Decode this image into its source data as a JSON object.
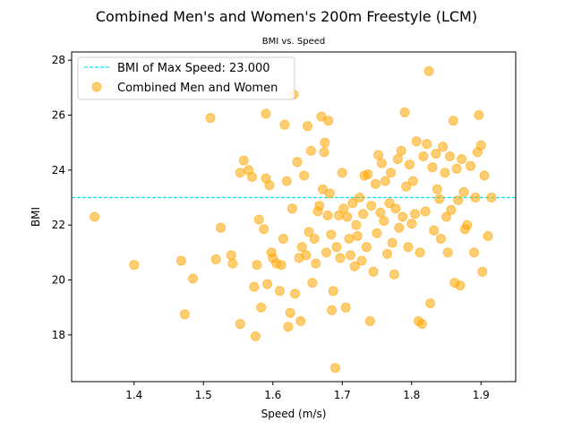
{
  "chart_data": {
    "type": "scatter",
    "title": "Combined Men's and Women's 200m Freestyle (LCM)",
    "subtitle": "BMI vs. Speed",
    "xlabel": "Speed (m/s)",
    "ylabel": "BMI",
    "xlim": [
      1.31,
      1.95
    ],
    "ylim": [
      16.3,
      28.3
    ],
    "xticks": [
      "1.4",
      "1.5",
      "1.6",
      "1.7",
      "1.8",
      "1.9"
    ],
    "yticks": [
      "18",
      "20",
      "22",
      "24",
      "26",
      "28"
    ],
    "grid": false,
    "legend_position": "upper-left",
    "reference_line": {
      "label": "BMI of Max Speed: 23.000",
      "y": 23.0,
      "color": "#00e5ee",
      "style": "dashed"
    },
    "series": [
      {
        "name": "Combined Men and Women",
        "color": "#ffa500",
        "points": [
          [
            1.343,
            22.3
          ],
          [
            1.4,
            20.55
          ],
          [
            1.468,
            20.7
          ],
          [
            1.473,
            18.75
          ],
          [
            1.485,
            20.05
          ],
          [
            1.51,
            25.9
          ],
          [
            1.518,
            20.75
          ],
          [
            1.525,
            21.9
          ],
          [
            1.54,
            20.9
          ],
          [
            1.542,
            20.6
          ],
          [
            1.553,
            18.4
          ],
          [
            1.553,
            23.9
          ],
          [
            1.558,
            24.35
          ],
          [
            1.565,
            24.0
          ],
          [
            1.57,
            23.75
          ],
          [
            1.573,
            19.75
          ],
          [
            1.575,
            17.95
          ],
          [
            1.577,
            20.55
          ],
          [
            1.58,
            22.2
          ],
          [
            1.583,
            19.0
          ],
          [
            1.587,
            21.85
          ],
          [
            1.59,
            26.05
          ],
          [
            1.59,
            23.7
          ],
          [
            1.592,
            19.85
          ],
          [
            1.595,
            23.45
          ],
          [
            1.598,
            21.0
          ],
          [
            1.6,
            20.8
          ],
          [
            1.605,
            20.6
          ],
          [
            1.61,
            19.6
          ],
          [
            1.612,
            20.55
          ],
          [
            1.615,
            21.5
          ],
          [
            1.617,
            25.65
          ],
          [
            1.62,
            23.6
          ],
          [
            1.622,
            18.3
          ],
          [
            1.625,
            18.8
          ],
          [
            1.628,
            22.6
          ],
          [
            1.63,
            26.75
          ],
          [
            1.632,
            19.5
          ],
          [
            1.635,
            24.3
          ],
          [
            1.638,
            20.8
          ],
          [
            1.64,
            18.5
          ],
          [
            1.642,
            21.2
          ],
          [
            1.645,
            23.8
          ],
          [
            1.648,
            20.9
          ],
          [
            1.65,
            25.6
          ],
          [
            1.652,
            21.75
          ],
          [
            1.655,
            24.7
          ],
          [
            1.657,
            19.9
          ],
          [
            1.66,
            21.5
          ],
          [
            1.662,
            20.6
          ],
          [
            1.665,
            22.5
          ],
          [
            1.667,
            22.7
          ],
          [
            1.67,
            25.95
          ],
          [
            1.672,
            23.3
          ],
          [
            1.674,
            24.65
          ],
          [
            1.675,
            25.0
          ],
          [
            1.677,
            21.0
          ],
          [
            1.679,
            22.35
          ],
          [
            1.68,
            25.8
          ],
          [
            1.682,
            23.15
          ],
          [
            1.684,
            21.65
          ],
          [
            1.685,
            18.9
          ],
          [
            1.687,
            19.6
          ],
          [
            1.69,
            16.8
          ],
          [
            1.692,
            21.2
          ],
          [
            1.695,
            22.35
          ],
          [
            1.697,
            20.8
          ],
          [
            1.7,
            23.9
          ],
          [
            1.702,
            22.6
          ],
          [
            1.705,
            19.0
          ],
          [
            1.707,
            22.3
          ],
          [
            1.71,
            21.5
          ],
          [
            1.712,
            20.9
          ],
          [
            1.715,
            22.8
          ],
          [
            1.718,
            20.5
          ],
          [
            1.72,
            22.0
          ],
          [
            1.722,
            21.6
          ],
          [
            1.725,
            23.0
          ],
          [
            1.728,
            20.7
          ],
          [
            1.73,
            22.4
          ],
          [
            1.732,
            23.8
          ],
          [
            1.735,
            21.2
          ],
          [
            1.737,
            23.85
          ],
          [
            1.74,
            18.5
          ],
          [
            1.742,
            22.7
          ],
          [
            1.745,
            20.3
          ],
          [
            1.748,
            23.5
          ],
          [
            1.75,
            21.7
          ],
          [
            1.752,
            24.55
          ],
          [
            1.755,
            22.45
          ],
          [
            1.757,
            24.25
          ],
          [
            1.76,
            22.15
          ],
          [
            1.762,
            23.6
          ],
          [
            1.765,
            20.95
          ],
          [
            1.768,
            22.8
          ],
          [
            1.77,
            23.9
          ],
          [
            1.772,
            21.35
          ],
          [
            1.775,
            20.2
          ],
          [
            1.777,
            22.6
          ],
          [
            1.78,
            24.4
          ],
          [
            1.782,
            21.9
          ],
          [
            1.785,
            24.7
          ],
          [
            1.787,
            22.3
          ],
          [
            1.79,
            26.1
          ],
          [
            1.792,
            23.4
          ],
          [
            1.795,
            21.2
          ],
          [
            1.797,
            24.2
          ],
          [
            1.8,
            22.05
          ],
          [
            1.802,
            23.6
          ],
          [
            1.805,
            22.4
          ],
          [
            1.807,
            25.05
          ],
          [
            1.81,
            18.5
          ],
          [
            1.812,
            21.0
          ],
          [
            1.815,
            18.4
          ],
          [
            1.817,
            24.5
          ],
          [
            1.82,
            22.5
          ],
          [
            1.822,
            24.95
          ],
          [
            1.825,
            27.6
          ],
          [
            1.827,
            19.15
          ],
          [
            1.83,
            24.1
          ],
          [
            1.832,
            21.8
          ],
          [
            1.835,
            24.6
          ],
          [
            1.837,
            23.3
          ],
          [
            1.84,
            22.95
          ],
          [
            1.842,
            21.5
          ],
          [
            1.845,
            24.85
          ],
          [
            1.848,
            23.9
          ],
          [
            1.85,
            22.3
          ],
          [
            1.852,
            21.0
          ],
          [
            1.855,
            24.5
          ],
          [
            1.857,
            22.55
          ],
          [
            1.86,
            25.8
          ],
          [
            1.862,
            19.9
          ],
          [
            1.865,
            24.05
          ],
          [
            1.867,
            22.9
          ],
          [
            1.87,
            19.8
          ],
          [
            1.872,
            24.4
          ],
          [
            1.875,
            23.2
          ],
          [
            1.877,
            21.85
          ],
          [
            1.88,
            22.0
          ],
          [
            1.885,
            24.15
          ],
          [
            1.89,
            21.0
          ],
          [
            1.892,
            23.0
          ],
          [
            1.895,
            24.65
          ],
          [
            1.897,
            26.0
          ],
          [
            1.9,
            24.9
          ],
          [
            1.902,
            20.3
          ],
          [
            1.905,
            23.8
          ],
          [
            1.91,
            21.6
          ],
          [
            1.915,
            23.0
          ]
        ]
      }
    ]
  }
}
